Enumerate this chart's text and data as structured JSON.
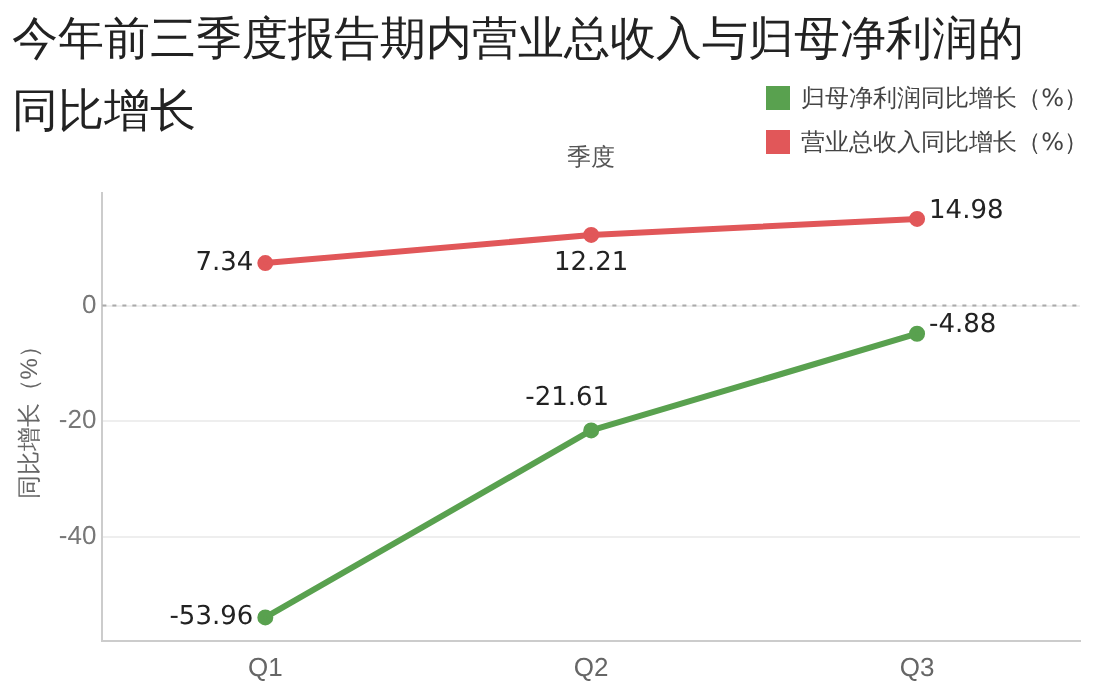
{
  "chart_data": {
    "type": "line",
    "title": "今年前三季度报告期内营业总收入与归母净利润的同比增长",
    "xlabel": "季度",
    "ylabel": "同比增长（%）",
    "categories": [
      "Q1",
      "Q2",
      "Q3"
    ],
    "series": [
      {
        "name": "归母净利润同比增长（%）",
        "color": "#59a14f",
        "values": [
          -53.96,
          -21.61,
          -4.88
        ]
      },
      {
        "name": "营业总收入同比增长（%）",
        "color": "#e15759",
        "values": [
          7.34,
          12.21,
          14.98
        ]
      }
    ],
    "ylim": [
      -58,
      19.5
    ],
    "yticks": [
      -40,
      -20,
      0
    ],
    "grid": "y",
    "legend": "top right",
    "marker": "circle",
    "line_style": "solid",
    "data_labels": true,
    "ref_lines": [
      {
        "axis": "y",
        "value": 0,
        "line_style": "dotted",
        "color": "#aaaaaa"
      }
    ]
  }
}
